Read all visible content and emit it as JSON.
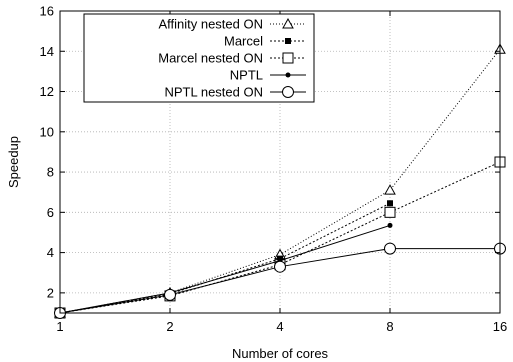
{
  "chart_data": {
    "type": "line",
    "xlabel": "Number of cores",
    "ylabel": "Speedup",
    "x_scale": "log2",
    "x": [
      1,
      2,
      4,
      8,
      16
    ],
    "xticks": [
      "1",
      "2",
      "4",
      "8",
      "16"
    ],
    "ylim": [
      1,
      16
    ],
    "yticks": [
      "2",
      "4",
      "6",
      "8",
      "10",
      "12",
      "14",
      "16"
    ],
    "grid": true,
    "legend_position": "top-left",
    "series": [
      {
        "name": "Affinity nested ON",
        "marker": "triangle-open",
        "line": "dotted-fine",
        "values": [
          1,
          2.0,
          3.9,
          7.1,
          14.1
        ]
      },
      {
        "name": "Marcel",
        "marker": "square-filled",
        "line": "dotted",
        "values": [
          1,
          1.95,
          3.7,
          6.45,
          null
        ]
      },
      {
        "name": "Marcel nested ON",
        "marker": "square-open",
        "line": "dotted",
        "values": [
          1,
          1.85,
          3.4,
          6.0,
          8.5
        ]
      },
      {
        "name": "NPTL",
        "marker": "circle-filled",
        "line": "solid",
        "values": [
          1,
          2.0,
          3.6,
          5.35,
          null
        ]
      },
      {
        "name": "NPTL nested ON",
        "marker": "circle-open",
        "line": "solid",
        "values": [
          1,
          1.9,
          3.3,
          4.2,
          4.2
        ]
      }
    ]
  }
}
